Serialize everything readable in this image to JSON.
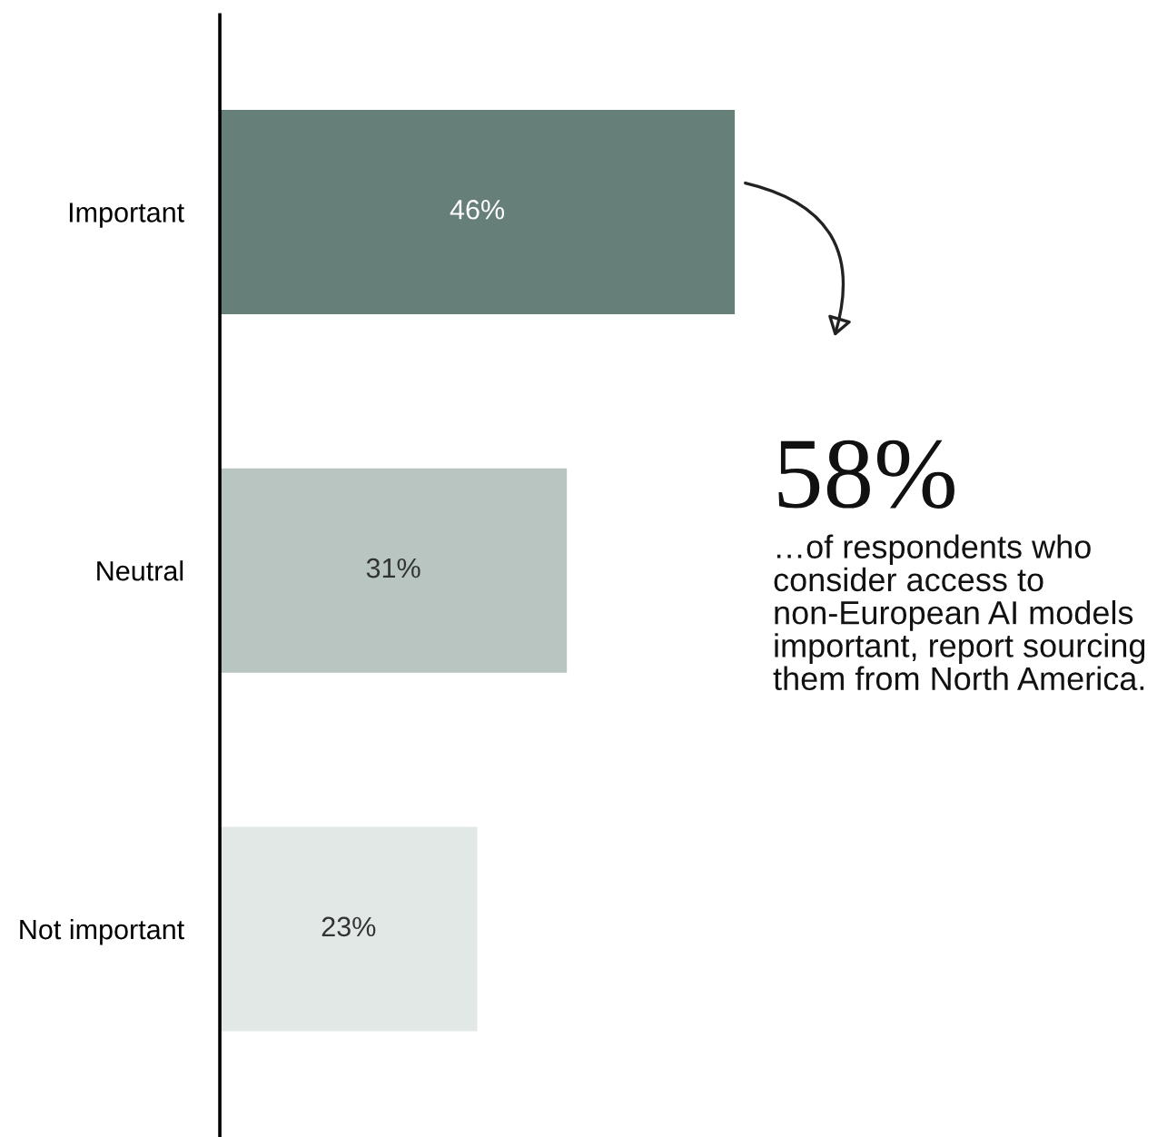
{
  "chart_data": {
    "type": "bar",
    "orientation": "horizontal",
    "categories": [
      "Important",
      "Neutral",
      "Not important"
    ],
    "values": [
      46,
      31,
      23
    ],
    "colors": [
      "#667f79",
      "#b9c5c0",
      "#e2e8e6"
    ],
    "data_labels": true,
    "value_labels": [
      "46%",
      "31%",
      "23%"
    ],
    "grid": false,
    "legend": false,
    "annotations": [
      "58%",
      "…of respondents who consider access to non-European AI models important, report sourcing them from North America."
    ]
  }
}
